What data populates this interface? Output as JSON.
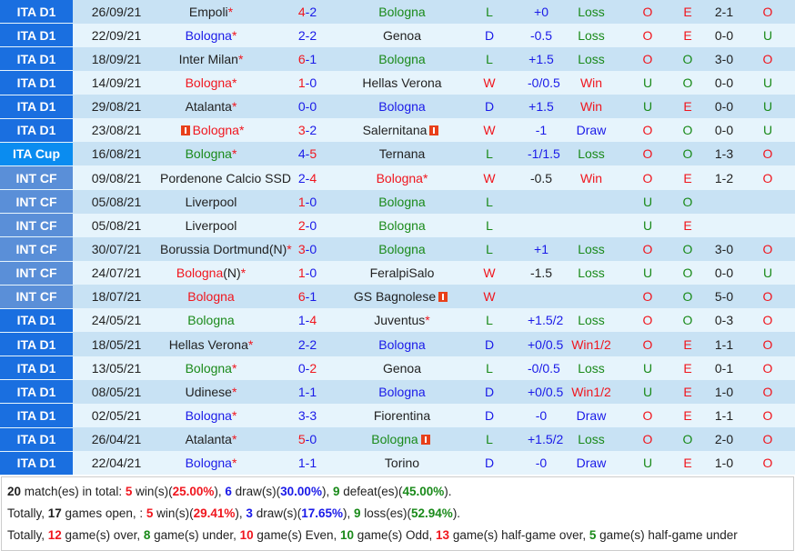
{
  "colors": {
    "win": "#f0161e",
    "draw": "#1a1ae8",
    "loss": "#1a8a1a",
    "league_d1": "#1a6fe0",
    "league_cup": "#0a8cf0",
    "league_int": "#5a8fd8"
  },
  "rows": [
    {
      "league": "ITA D1",
      "lt": "",
      "date": "26/09/21",
      "home": "Empoli",
      "hc": "k",
      "hs": "*",
      "hf": "",
      "score_h": "4",
      "sh": "r",
      "score_a": "2",
      "sa": "b",
      "away": "Bologna",
      "ac": "g",
      "as": "",
      "af": "",
      "res": "L",
      "hcp": "+0",
      "hpc": "b",
      "hres": "Loss",
      "ou": "O",
      "eo": "E",
      "ht": "2-1",
      "htou": "O"
    },
    {
      "league": "ITA D1",
      "lt": "",
      "date": "22/09/21",
      "home": "Bologna",
      "hc": "b",
      "hs": "*",
      "hf": "",
      "score_h": "2",
      "sh": "b",
      "score_a": "2",
      "sa": "b",
      "away": "Genoa",
      "ac": "k",
      "as": "",
      "af": "",
      "res": "D",
      "hcp": "-0.5",
      "hpc": "b",
      "hres": "Loss",
      "ou": "O",
      "eo": "E",
      "ht": "0-0",
      "htou": "U"
    },
    {
      "league": "ITA D1",
      "lt": "",
      "date": "18/09/21",
      "home": "Inter Milan",
      "hc": "k",
      "hs": "*",
      "hf": "",
      "score_h": "6",
      "sh": "r",
      "score_a": "1",
      "sa": "b",
      "away": "Bologna",
      "ac": "g",
      "as": "",
      "af": "",
      "res": "L",
      "hcp": "+1.5",
      "hpc": "b",
      "hres": "Loss",
      "ou": "O",
      "eo": "O",
      "ht": "3-0",
      "htou": "O"
    },
    {
      "league": "ITA D1",
      "lt": "",
      "date": "14/09/21",
      "home": "Bologna",
      "hc": "r",
      "hs": "*",
      "hf": "",
      "score_h": "1",
      "sh": "r",
      "score_a": "0",
      "sa": "b",
      "away": "Hellas Verona",
      "ac": "k",
      "as": "",
      "af": "",
      "res": "W",
      "hcp": "-0/0.5",
      "hpc": "b",
      "hres": "Win",
      "ou": "U",
      "eo": "O",
      "ht": "0-0",
      "htou": "U"
    },
    {
      "league": "ITA D1",
      "lt": "",
      "date": "29/08/21",
      "home": "Atalanta",
      "hc": "k",
      "hs": "*",
      "hf": "",
      "score_h": "0",
      "sh": "b",
      "score_a": "0",
      "sa": "b",
      "away": "Bologna",
      "ac": "b",
      "as": "",
      "af": "",
      "res": "D",
      "hcp": "+1.5",
      "hpc": "b",
      "hres": "Win",
      "ou": "U",
      "eo": "E",
      "ht": "0-0",
      "htou": "U"
    },
    {
      "league": "ITA D1",
      "lt": "",
      "date": "23/08/21",
      "home": "Bologna",
      "hc": "r",
      "hs": "*",
      "hf": "pre",
      "score_h": "3",
      "sh": "r",
      "score_a": "2",
      "sa": "b",
      "away": "Salernitana",
      "ac": "k",
      "as": "",
      "af": "post",
      "res": "W",
      "hcp": "-1",
      "hpc": "b",
      "hres": "Draw",
      "ou": "O",
      "eo": "O",
      "ht": "0-0",
      "htou": "U"
    },
    {
      "league": "ITA Cup",
      "lt": "cup",
      "date": "16/08/21",
      "home": "Bologna",
      "hc": "g",
      "hs": "*",
      "hf": "",
      "score_h": "4",
      "sh": "b",
      "score_a": "5",
      "sa": "r",
      "away": "Ternana",
      "ac": "k",
      "as": "",
      "af": "",
      "res": "L",
      "hcp": "-1/1.5",
      "hpc": "b",
      "hres": "Loss",
      "ou": "O",
      "eo": "O",
      "ht": "1-3",
      "htou": "O"
    },
    {
      "league": "INT CF",
      "lt": "int",
      "date": "09/08/21",
      "home": "Pordenone Calcio SSD",
      "hc": "k",
      "hs": "",
      "hf": "",
      "score_h": "2",
      "sh": "b",
      "score_a": "4",
      "sa": "r",
      "away": "Bologna",
      "ac": "r",
      "as": "*",
      "af": "",
      "res": "W",
      "hcp": "-0.5",
      "hpc": "k",
      "hres": "Win",
      "ou": "O",
      "eo": "E",
      "ht": "1-2",
      "htou": "O"
    },
    {
      "league": "INT CF",
      "lt": "int",
      "date": "05/08/21",
      "home": "Liverpool",
      "hc": "k",
      "hs": "",
      "hf": "",
      "score_h": "1",
      "sh": "r",
      "score_a": "0",
      "sa": "b",
      "away": "Bologna",
      "ac": "g",
      "as": "",
      "af": "",
      "res": "L",
      "hcp": "",
      "hpc": "b",
      "hres": "",
      "ou": "U",
      "eo": "O",
      "ht": "",
      "htou": ""
    },
    {
      "league": "INT CF",
      "lt": "int",
      "date": "05/08/21",
      "home": "Liverpool",
      "hc": "k",
      "hs": "",
      "hf": "",
      "score_h": "2",
      "sh": "r",
      "score_a": "0",
      "sa": "b",
      "away": "Bologna",
      "ac": "g",
      "as": "",
      "af": "",
      "res": "L",
      "hcp": "",
      "hpc": "b",
      "hres": "",
      "ou": "U",
      "eo": "E",
      "ht": "",
      "htou": ""
    },
    {
      "league": "INT CF",
      "lt": "int",
      "date": "30/07/21",
      "home": "Borussia Dortmund(N)",
      "hc": "k",
      "hs": "*",
      "hf": "",
      "score_h": "3",
      "sh": "r",
      "score_a": "0",
      "sa": "b",
      "away": "Bologna",
      "ac": "g",
      "as": "",
      "af": "",
      "res": "L",
      "hcp": "+1",
      "hpc": "b",
      "hres": "Loss",
      "ou": "O",
      "eo": "O",
      "ht": "3-0",
      "htou": "O"
    },
    {
      "league": "INT CF",
      "lt": "int",
      "date": "24/07/21",
      "home": "Bologna",
      "hc": "r",
      "hn": "(N)",
      "hs": "*",
      "hf": "",
      "score_h": "1",
      "sh": "r",
      "score_a": "0",
      "sa": "b",
      "away": "FeralpiSalo",
      "ac": "k",
      "as": "",
      "af": "",
      "res": "W",
      "hcp": "-1.5",
      "hpc": "k",
      "hres": "Loss",
      "ou": "U",
      "eo": "O",
      "ht": "0-0",
      "htou": "U"
    },
    {
      "league": "INT CF",
      "lt": "int",
      "date": "18/07/21",
      "home": "Bologna",
      "hc": "r",
      "hs": "",
      "hf": "",
      "score_h": "6",
      "sh": "r",
      "score_a": "1",
      "sa": "b",
      "away": "GS Bagnolese",
      "ac": "k",
      "as": "",
      "af": "post",
      "res": "W",
      "hcp": "",
      "hpc": "b",
      "hres": "",
      "ou": "O",
      "eo": "O",
      "ht": "5-0",
      "htou": "O"
    },
    {
      "league": "ITA D1",
      "lt": "",
      "date": "24/05/21",
      "home": "Bologna",
      "hc": "g",
      "hs": "",
      "hf": "",
      "score_h": "1",
      "sh": "b",
      "score_a": "4",
      "sa": "r",
      "away": "Juventus",
      "ac": "k",
      "as": "*",
      "af": "",
      "res": "L",
      "hcp": "+1.5/2",
      "hpc": "b",
      "hres": "Loss",
      "ou": "O",
      "eo": "O",
      "ht": "0-3",
      "htou": "O"
    },
    {
      "league": "ITA D1",
      "lt": "",
      "date": "18/05/21",
      "home": "Hellas Verona",
      "hc": "k",
      "hs": "*",
      "hf": "",
      "score_h": "2",
      "sh": "b",
      "score_a": "2",
      "sa": "b",
      "away": "Bologna",
      "ac": "b",
      "as": "",
      "af": "",
      "res": "D",
      "hcp": "+0/0.5",
      "hpc": "b",
      "hres": "Win1/2",
      "ou": "O",
      "eo": "E",
      "ht": "1-1",
      "htou": "O"
    },
    {
      "league": "ITA D1",
      "lt": "",
      "date": "13/05/21",
      "home": "Bologna",
      "hc": "g",
      "hs": "*",
      "hf": "",
      "score_h": "0",
      "sh": "b",
      "score_a": "2",
      "sa": "r",
      "away": "Genoa",
      "ac": "k",
      "as": "",
      "af": "",
      "res": "L",
      "hcp": "-0/0.5",
      "hpc": "b",
      "hres": "Loss",
      "ou": "U",
      "eo": "E",
      "ht": "0-1",
      "htou": "O"
    },
    {
      "league": "ITA D1",
      "lt": "",
      "date": "08/05/21",
      "home": "Udinese",
      "hc": "k",
      "hs": "*",
      "hf": "",
      "score_h": "1",
      "sh": "b",
      "score_a": "1",
      "sa": "b",
      "away": "Bologna",
      "ac": "b",
      "as": "",
      "af": "",
      "res": "D",
      "hcp": "+0/0.5",
      "hpc": "b",
      "hres": "Win1/2",
      "ou": "U",
      "eo": "E",
      "ht": "1-0",
      "htou": "O"
    },
    {
      "league": "ITA D1",
      "lt": "",
      "date": "02/05/21",
      "home": "Bologna",
      "hc": "b",
      "hs": "*",
      "hf": "",
      "score_h": "3",
      "sh": "b",
      "score_a": "3",
      "sa": "b",
      "away": "Fiorentina",
      "ac": "k",
      "as": "",
      "af": "",
      "res": "D",
      "hcp": "-0",
      "hpc": "b",
      "hres": "Draw",
      "ou": "O",
      "eo": "E",
      "ht": "1-1",
      "htou": "O"
    },
    {
      "league": "ITA D1",
      "lt": "",
      "date": "26/04/21",
      "home": "Atalanta",
      "hc": "k",
      "hs": "*",
      "hf": "",
      "score_h": "5",
      "sh": "r",
      "score_a": "0",
      "sa": "b",
      "away": "Bologna",
      "ac": "g",
      "as": "",
      "af": "post",
      "res": "L",
      "hcp": "+1.5/2",
      "hpc": "b",
      "hres": "Loss",
      "ou": "O",
      "eo": "O",
      "ht": "2-0",
      "htou": "O"
    },
    {
      "league": "ITA D1",
      "lt": "",
      "date": "22/04/21",
      "home": "Bologna",
      "hc": "b",
      "hs": "*",
      "hf": "",
      "score_h": "1",
      "sh": "b",
      "score_a": "1",
      "sa": "b",
      "away": "Torino",
      "ac": "k",
      "as": "",
      "af": "",
      "res": "D",
      "hcp": "-0",
      "hpc": "b",
      "hres": "Draw",
      "ou": "U",
      "eo": "E",
      "ht": "1-0",
      "htou": "O"
    }
  ],
  "summary": {
    "l1": {
      "total": "20",
      "t1": " match(es) in total: ",
      "w": "5",
      "t2": " win(s)(",
      "wp": "25.00%",
      "t3": "), ",
      "d": "6",
      "t4": " draw(s)(",
      "dp": "30.00%",
      "t5": "), ",
      "l": "9",
      "t6": " defeat(es)(",
      "lp": "45.00%",
      "t7": ")."
    },
    "l2": {
      "t0": "Totally, ",
      "open": "17",
      "t1": " games open, : ",
      "w": "5",
      "t2": " win(s)(",
      "wp": "29.41%",
      "t3": "), ",
      "d": "3",
      "t4": " draw(s)(",
      "dp": "17.65%",
      "t5": "), ",
      "l": "9",
      "t6": " loss(es)(",
      "lp": "52.94%",
      "t7": ")."
    },
    "l3": {
      "t0": "Totally, ",
      "over": "12",
      "t1": " game(s) over, ",
      "under": "8",
      "t2": " game(s) under, ",
      "even": "10",
      "t3": " game(s) Even, ",
      "odd": "10",
      "t4": " game(s) Odd, ",
      "hover": "13",
      "t5": " game(s) half-game over, ",
      "hunder": "5",
      "t6": " game(s) half-game under"
    }
  }
}
